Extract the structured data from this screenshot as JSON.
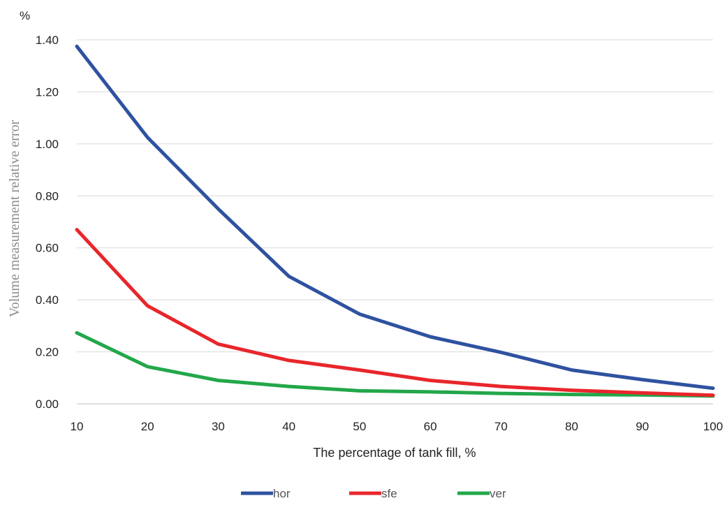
{
  "chart_data": {
    "type": "line",
    "title": "",
    "xlabel": "The percentage of tank fill, %",
    "ylabel": "Volume measurement relative error",
    "y_unit": "%",
    "x": [
      10,
      20,
      30,
      40,
      50,
      60,
      70,
      80,
      90,
      100
    ],
    "x_ticks": [
      "10",
      "20",
      "30",
      "40",
      "50",
      "60",
      "70",
      "80",
      "90",
      "100"
    ],
    "y_ticks": [
      "0.00",
      "0.20",
      "0.40",
      "0.60",
      "0.80",
      "1.00",
      "1.20",
      "1.40"
    ],
    "ylim": [
      0,
      1.4
    ],
    "grid": "horizontal",
    "legend_position": "bottom",
    "series": [
      {
        "name": "hor",
        "color": "#2f52a0",
        "values": [
          1.375,
          1.025,
          0.75,
          0.49,
          0.345,
          0.258,
          0.198,
          0.13,
          0.093,
          0.06
        ]
      },
      {
        "name": "sfe",
        "color": "#e8262b",
        "values": [
          0.67,
          0.377,
          0.23,
          0.167,
          0.13,
          0.09,
          0.067,
          0.052,
          0.042,
          0.033
        ]
      },
      {
        "name": "ver",
        "color": "#22a74a",
        "values": [
          0.273,
          0.143,
          0.09,
          0.067,
          0.05,
          0.046,
          0.04,
          0.036,
          0.034,
          0.03
        ]
      }
    ]
  }
}
